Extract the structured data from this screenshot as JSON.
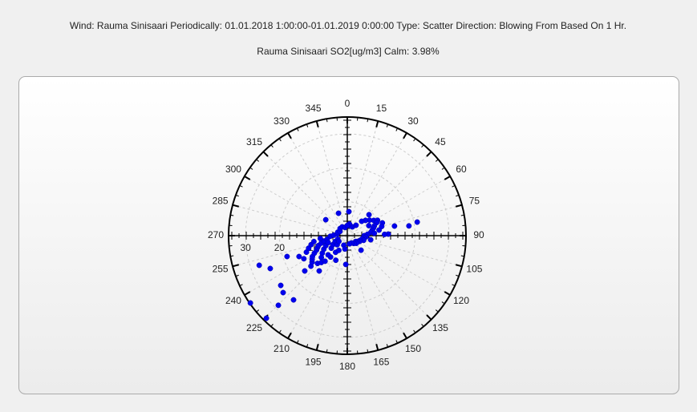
{
  "chart_data": {
    "type": "polar",
    "title": "Wind: Rauma Sinisaari  Periodically: 01.01.2018 1:00:00-01.01.2019 0:00:00  Type: Scatter Direction: Blowing From Based On 1 Hr.",
    "subtitle": "Rauma Sinisaari SO2[ug/m3]   Calm: 3.98%",
    "color": "#0000ee",
    "rlim": [
      0,
      35
    ],
    "rticks": [
      10,
      20,
      30
    ],
    "xlim": [
      0,
      360
    ],
    "xticks": [
      0,
      15,
      30,
      45,
      60,
      75,
      90,
      105,
      120,
      135,
      150,
      165,
      180,
      195,
      210,
      225,
      240,
      255,
      270,
      285,
      300,
      315,
      330,
      345
    ],
    "grid": true,
    "x": [
      235.2,
      224.4,
      251.4,
      246.9,
      250.9,
      233.2,
      228.4,
      224.7,
      219.9,
      230.3,
      218.5,
      246.6,
      79,
      81,
      78.5,
      87.8,
      46,
      306.5,
      338.6,
      3.8,
      136.6,
      183,
      230,
      233,
      236,
      239,
      242,
      245,
      248,
      251,
      254,
      257,
      260,
      227,
      224,
      221,
      218,
      215,
      235,
      240,
      245,
      250,
      230,
      225,
      232,
      238,
      244,
      250,
      228,
      236,
      242,
      248,
      252,
      256,
      260,
      264,
      268,
      272,
      280,
      290,
      300,
      315,
      330,
      345,
      200,
      190,
      210,
      205,
      60,
      63,
      66,
      70,
      74,
      78,
      82,
      86,
      90,
      94,
      98,
      102,
      106,
      110,
      115,
      120,
      125,
      130,
      140,
      150,
      165,
      55,
      50,
      45,
      40,
      30,
      20,
      10,
      0,
      70,
      75,
      80,
      85,
      65,
      88,
      100
    ],
    "values": [
      34.8,
      34.1,
      27.4,
      24.7,
      18.8,
      24.5,
      25.3,
      28.9,
      24.7,
      16.3,
      13.3,
      15.5,
      21,
      18.4,
      14.2,
      12.1,
      8.9,
      7.9,
      7.1,
      7.1,
      5.9,
      8.5,
      14,
      13,
      12.5,
      12,
      11,
      10,
      9.5,
      9,
      8,
      7,
      6,
      12,
      11,
      10,
      8,
      6,
      9,
      8,
      7,
      6,
      10,
      8,
      6,
      5,
      4,
      3,
      4,
      3,
      14.5,
      13,
      12,
      11,
      10,
      8,
      5,
      4,
      3,
      3,
      2.5,
      3,
      3,
      2.5,
      3,
      4,
      5,
      8,
      9,
      10,
      9.5,
      8.5,
      8,
      7.5,
      7,
      6,
      5,
      5.5,
      5,
      4.5,
      5,
      4,
      4,
      3.5,
      3,
      3.5,
      3,
      2.5,
      2.5,
      8,
      7,
      6,
      4,
      3,
      3,
      3.5,
      3,
      11,
      10.5,
      9.5,
      8,
      7,
      11,
      7
    ]
  }
}
